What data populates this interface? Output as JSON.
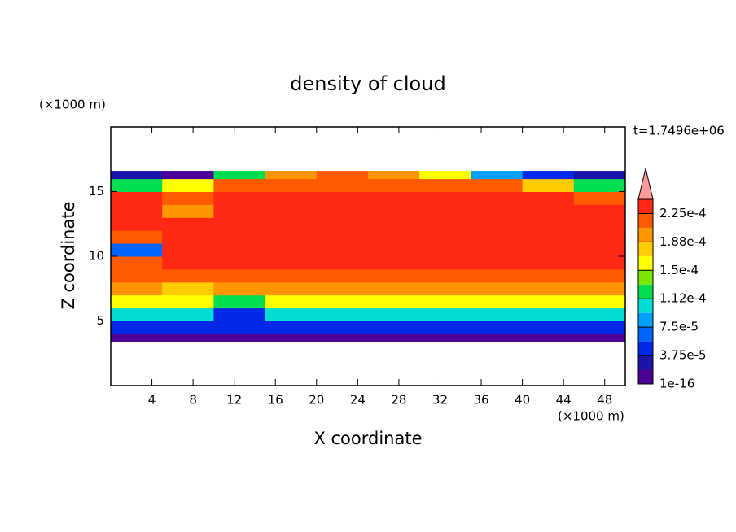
{
  "chart_data": {
    "type": "contour",
    "title": "density of cloud",
    "xlabel": "X coordinate",
    "ylabel": "Z coordinate",
    "xunit": "(×1000 m)",
    "yunit": "(×1000 m)",
    "time_label": "t=1.7496e+06",
    "xlim": [
      0,
      50
    ],
    "ylim": [
      0,
      20
    ],
    "xticks": [
      4,
      8,
      12,
      16,
      20,
      24,
      28,
      32,
      36,
      40,
      44,
      48
    ],
    "yticks": [
      5,
      10,
      15
    ],
    "x_edges": [
      0,
      5,
      10,
      15,
      20,
      25,
      30,
      35,
      40,
      45,
      50
    ],
    "z_edges": [
      3.4,
      4,
      5,
      6,
      7,
      8,
      9,
      10,
      11,
      12,
      13,
      14,
      15,
      16,
      16.6
    ],
    "values": [
      [
        1e-05,
        1e-05,
        1e-05,
        1e-05,
        1e-05,
        1e-05,
        1e-05,
        1e-05,
        1e-05,
        1e-05
      ],
      [
        4e-05,
        4e-05,
        4e-05,
        4e-05,
        4e-05,
        4e-05,
        4e-05,
        4e-05,
        4e-05,
        4e-05
      ],
      [
        0.0001,
        0.0001,
        5e-05,
        0.0001,
        0.0001,
        0.0001,
        0.0001,
        0.0001,
        0.0001,
        0.0001
      ],
      [
        0.00016,
        0.00016,
        0.00012,
        0.00016,
        0.00016,
        0.00016,
        0.00016,
        0.00016,
        0.00016,
        0.00016
      ],
      [
        0.0002,
        0.00018,
        0.0002,
        0.0002,
        0.0002,
        0.0002,
        0.0002,
        0.0002,
        0.0002,
        0.0002
      ],
      [
        0.00022,
        0.00022,
        0.00022,
        0.00022,
        0.00022,
        0.00022,
        0.00022,
        0.00022,
        0.00022,
        0.00022
      ],
      [
        0.00021,
        0.00023,
        0.00023,
        0.00023,
        0.00023,
        0.00023,
        0.00023,
        0.00023,
        0.00023,
        0.00023
      ],
      [
        6e-05,
        0.00023,
        0.00023,
        0.00023,
        0.00023,
        0.00023,
        0.00023,
        0.00023,
        0.00023,
        0.00023
      ],
      [
        0.00022,
        0.00023,
        0.00023,
        0.00023,
        0.00023,
        0.00023,
        0.00023,
        0.00023,
        0.00023,
        0.00023
      ],
      [
        0.00023,
        0.00023,
        0.00023,
        0.00023,
        0.00023,
        0.00023,
        0.00023,
        0.00023,
        0.00023,
        0.00023
      ],
      [
        0.00023,
        0.0002,
        0.00023,
        0.00023,
        0.00023,
        0.00023,
        0.00023,
        0.00023,
        0.00023,
        0.00023
      ],
      [
        0.00023,
        0.00021,
        0.00023,
        0.00023,
        0.00023,
        0.00023,
        0.00023,
        0.00023,
        0.00023,
        0.00021
      ],
      [
        0.00012,
        0.00015,
        0.00022,
        0.00022,
        0.00022,
        0.00022,
        0.00022,
        0.00022,
        0.00018,
        0.00012
      ],
      [
        3e-05,
        1e-05,
        0.00012,
        0.0002,
        0.00021,
        0.0002,
        0.00015,
        9e-05,
        4e-05,
        3e-05
      ]
    ],
    "levels": [
      1e-16,
      1.875e-05,
      3.75e-05,
      5.625e-05,
      7.5e-05,
      9.375e-05,
      0.0001125,
      0.00013125,
      0.00015,
      0.00016875,
      0.0001875,
      0.00020625,
      0.000225,
      0.00024375
    ],
    "colors": [
      "#4b0096",
      "#1a14aa",
      "#0028e6",
      "#0064ff",
      "#00a0ff",
      "#00dcd2",
      "#00dc50",
      "#78e600",
      "#ffff00",
      "#ffcc00",
      "#ff9600",
      "#ff5a00",
      "#ff2814"
    ],
    "extend_color": "#ff9a9a",
    "colorbar_ticks": [
      {
        "value": 1e-16,
        "label": "1e-16"
      },
      {
        "value": 3.75e-05,
        "label": "3.75e-5"
      },
      {
        "value": 7.5e-05,
        "label": "7.5e-5"
      },
      {
        "value": 0.0001125,
        "label": "1.12e-4"
      },
      {
        "value": 0.00015,
        "label": "1.5e-4"
      },
      {
        "value": 0.0001875,
        "label": "1.88e-4"
      },
      {
        "value": 0.000225,
        "label": "2.25e-4"
      }
    ]
  }
}
